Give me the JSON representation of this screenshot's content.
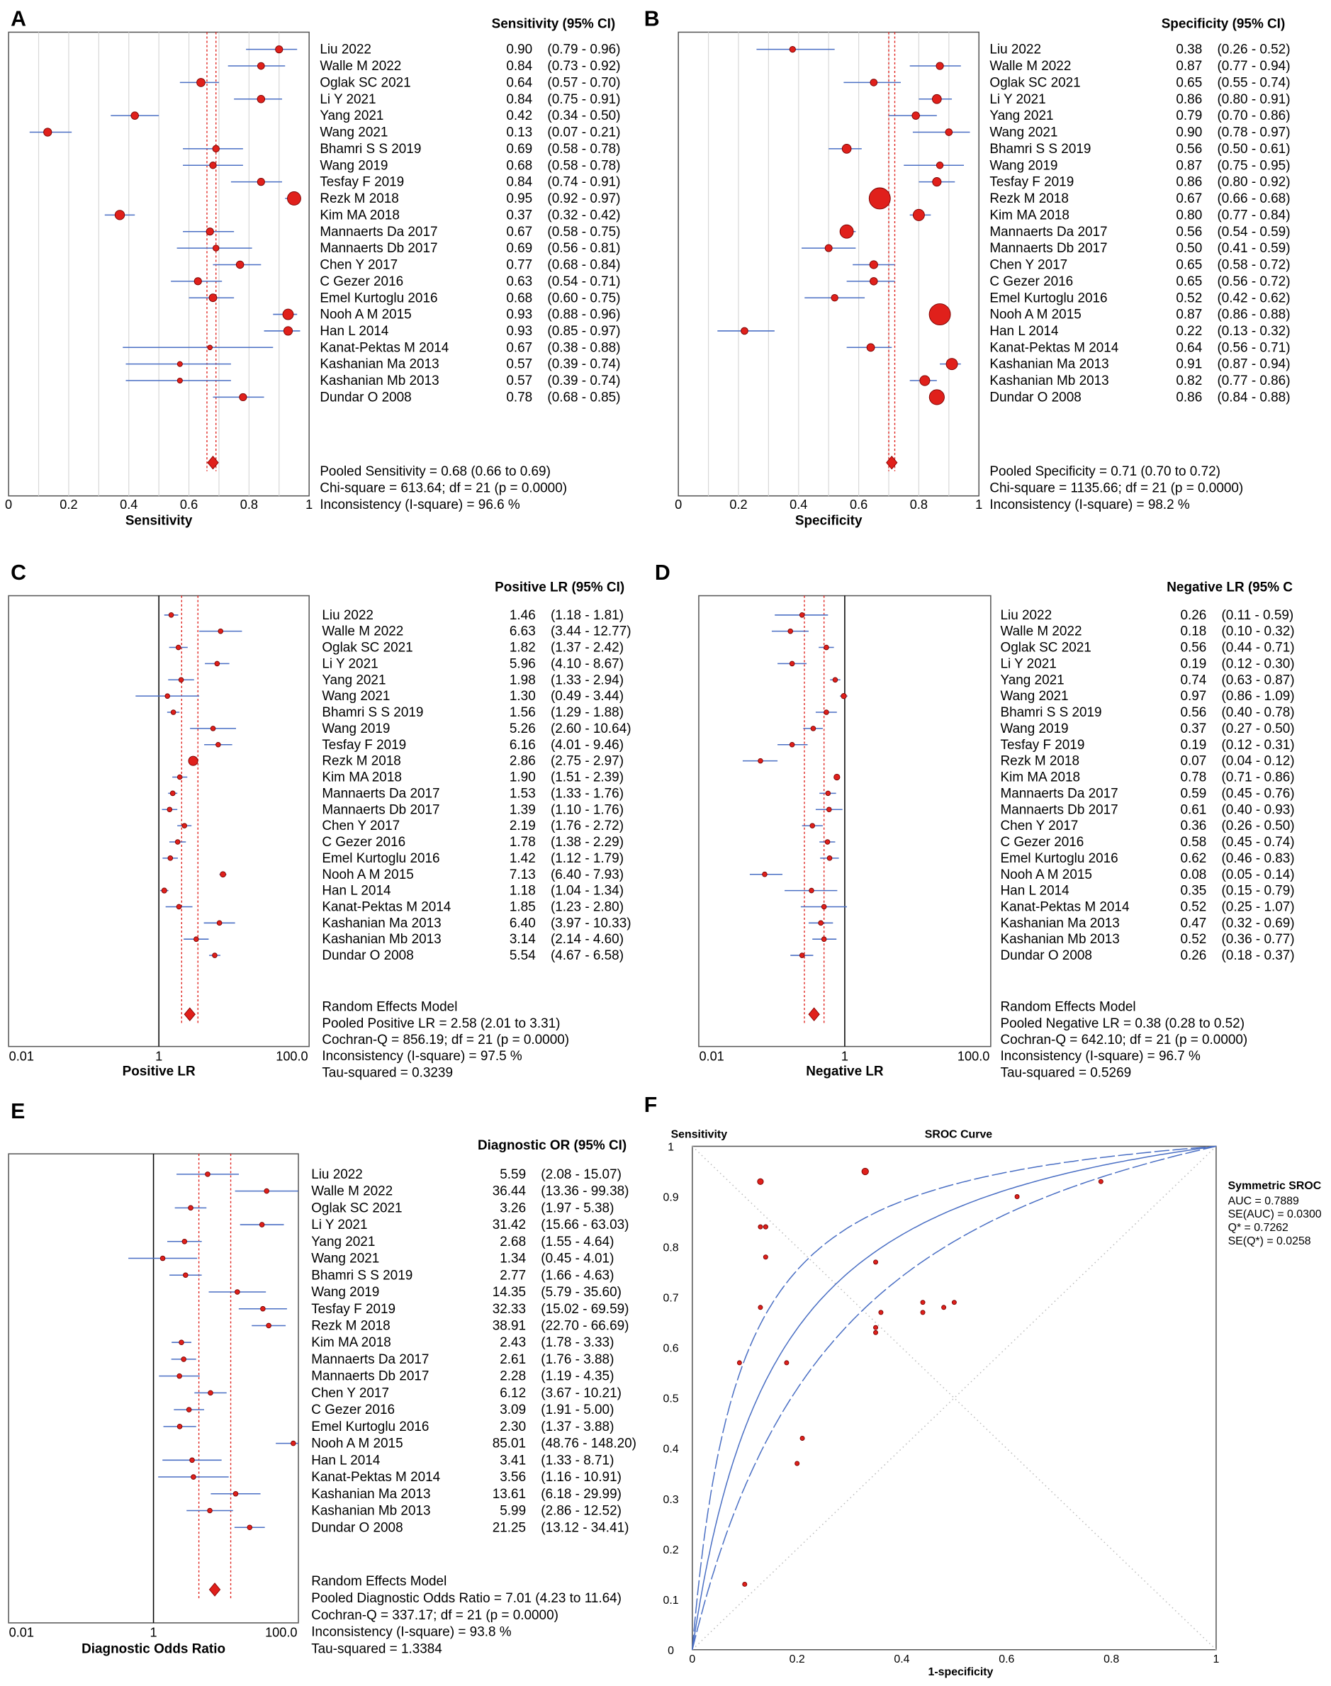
{
  "studies": [
    "Liu 2022",
    "Walle M 2022",
    "Oglak SC 2021",
    "Li Y 2021",
    "Yang 2021",
    "Wang 2021",
    "Bhamri S S 2019",
    "Wang 2019",
    "Tesfay F 2019",
    "Rezk M 2018",
    "Kim MA 2018",
    "Mannaerts Da 2017",
    "Mannaerts Db 2017",
    "Chen Y 2017",
    "C Gezer 2016",
    "Emel Kurtoglu 2016",
    "Nooh A M 2015",
    "Han L 2014",
    "Kanat-Pektas M 2014",
    "Kashanian Ma 2013",
    "Kashanian Mb 2013",
    "Dundar O 2008"
  ],
  "colors": {
    "marker": "#e0201b",
    "ci_line": "#4a6fc4",
    "pooled_line": "#e0201b",
    "grid": "#d8d8d8"
  },
  "chart_data": [
    {
      "id": "A",
      "type": "forest",
      "letter": "A",
      "header": "Sensitivity (95% CI)",
      "xlabel": "Sensitivity",
      "scale": "linear",
      "xlim": [
        0,
        1
      ],
      "tick_labels": [
        "0",
        "0.2",
        "0.4",
        "0.6",
        "0.8",
        "1"
      ],
      "ticks": [
        0,
        0.2,
        0.4,
        0.6,
        0.8,
        1
      ],
      "rows": [
        [
          0.9,
          0.79,
          0.96
        ],
        [
          0.84,
          0.73,
          0.92
        ],
        [
          0.64,
          0.57,
          0.7
        ],
        [
          0.84,
          0.75,
          0.91
        ],
        [
          0.42,
          0.34,
          0.5
        ],
        [
          0.13,
          0.07,
          0.21
        ],
        [
          0.69,
          0.58,
          0.78
        ],
        [
          0.68,
          0.58,
          0.78
        ],
        [
          0.84,
          0.74,
          0.91
        ],
        [
          0.95,
          0.92,
          0.97
        ],
        [
          0.37,
          0.32,
          0.42
        ],
        [
          0.67,
          0.58,
          0.75
        ],
        [
          0.69,
          0.56,
          0.81
        ],
        [
          0.77,
          0.68,
          0.84
        ],
        [
          0.63,
          0.54,
          0.71
        ],
        [
          0.68,
          0.6,
          0.75
        ],
        [
          0.93,
          0.88,
          0.96
        ],
        [
          0.93,
          0.85,
          0.97
        ],
        [
          0.67,
          0.38,
          0.88
        ],
        [
          0.57,
          0.39,
          0.74
        ],
        [
          0.57,
          0.39,
          0.74
        ],
        [
          0.78,
          0.68,
          0.85
        ]
      ],
      "pooled": [
        0.68,
        0.66,
        0.69
      ],
      "footer": [
        "Pooled Sensitivity = 0.68 (0.66 to 0.69)",
        "Chi-square = 613.64; df = 21 (p = 0.0000)",
        "Inconsistency (I-square) = 96.6 %"
      ]
    },
    {
      "id": "B",
      "type": "forest",
      "letter": "B",
      "header": "Specificity (95% CI)",
      "xlabel": "Specificity",
      "scale": "linear",
      "xlim": [
        0,
        1
      ],
      "tick_labels": [
        "0",
        "0.2",
        "0.4",
        "0.6",
        "0.8",
        "1"
      ],
      "ticks": [
        0,
        0.2,
        0.4,
        0.6,
        0.8,
        1
      ],
      "rows": [
        [
          0.38,
          0.26,
          0.52
        ],
        [
          0.87,
          0.77,
          0.94
        ],
        [
          0.65,
          0.55,
          0.74
        ],
        [
          0.86,
          0.8,
          0.91
        ],
        [
          0.79,
          0.7,
          0.86
        ],
        [
          0.9,
          0.78,
          0.97
        ],
        [
          0.56,
          0.5,
          0.61
        ],
        [
          0.87,
          0.75,
          0.95
        ],
        [
          0.86,
          0.8,
          0.92
        ],
        [
          0.67,
          0.66,
          0.68
        ],
        [
          0.8,
          0.77,
          0.84
        ],
        [
          0.56,
          0.54,
          0.59
        ],
        [
          0.5,
          0.41,
          0.59
        ],
        [
          0.65,
          0.58,
          0.72
        ],
        [
          0.65,
          0.56,
          0.72
        ],
        [
          0.52,
          0.42,
          0.62
        ],
        [
          0.87,
          0.86,
          0.88
        ],
        [
          0.22,
          0.13,
          0.32
        ],
        [
          0.64,
          0.56,
          0.71
        ],
        [
          0.91,
          0.87,
          0.94
        ],
        [
          0.82,
          0.77,
          0.86
        ],
        [
          0.86,
          0.84,
          0.88
        ]
      ],
      "pooled": [
        0.71,
        0.7,
        0.72
      ],
      "footer": [
        "Pooled Specificity = 0.71 (0.70 to 0.72)",
        "Chi-square = 1135.66; df = 21 (p = 0.0000)",
        "Inconsistency (I-square) = 98.2 %"
      ]
    },
    {
      "id": "C",
      "type": "forest",
      "letter": "C",
      "header": "Positive LR (95% CI)",
      "xlabel": "Positive LR",
      "scale": "log",
      "xlim": [
        0.01,
        100
      ],
      "tick_labels": [
        "0.01",
        "1",
        "100.0"
      ],
      "ticks": [
        0.01,
        1,
        100
      ],
      "rows": [
        [
          1.46,
          1.18,
          1.81
        ],
        [
          6.63,
          3.44,
          12.77
        ],
        [
          1.82,
          1.37,
          2.42
        ],
        [
          5.96,
          4.1,
          8.67
        ],
        [
          1.98,
          1.33,
          2.94
        ],
        [
          1.3,
          0.49,
          3.44
        ],
        [
          1.56,
          1.29,
          1.88
        ],
        [
          5.26,
          2.6,
          10.64
        ],
        [
          6.16,
          4.01,
          9.46
        ],
        [
          2.86,
          2.75,
          2.97
        ],
        [
          1.9,
          1.51,
          2.39
        ],
        [
          1.53,
          1.33,
          1.76
        ],
        [
          1.39,
          1.1,
          1.76
        ],
        [
          2.19,
          1.76,
          2.72
        ],
        [
          1.78,
          1.38,
          2.29
        ],
        [
          1.42,
          1.12,
          1.79
        ],
        [
          7.13,
          6.4,
          7.93
        ],
        [
          1.18,
          1.04,
          1.34
        ],
        [
          1.85,
          1.23,
          2.8
        ],
        [
          6.4,
          3.97,
          10.33
        ],
        [
          3.14,
          2.14,
          4.6
        ],
        [
          5.54,
          4.67,
          6.58
        ]
      ],
      "pooled": [
        2.58,
        2.01,
        3.31
      ],
      "footer": [
        "Random Effects Model",
        "Pooled Positive LR = 2.58 (2.01 to 3.31)",
        "Cochran-Q = 856.19; df = 21 (p = 0.0000)",
        "Inconsistency (I-square) = 97.5 %",
        "Tau-squared = 0.3239"
      ]
    },
    {
      "id": "D",
      "type": "forest",
      "letter": "D",
      "header": "Negative LR (95% C",
      "xlabel": "Negative LR",
      "scale": "log",
      "xlim": [
        0.01,
        100
      ],
      "tick_labels": [
        "0.01",
        "1",
        "100.0"
      ],
      "ticks": [
        0.01,
        1,
        100
      ],
      "rows": [
        [
          0.26,
          0.11,
          0.59
        ],
        [
          0.18,
          0.1,
          0.32
        ],
        [
          0.56,
          0.44,
          0.71
        ],
        [
          0.19,
          0.12,
          0.3
        ],
        [
          0.74,
          0.63,
          0.87
        ],
        [
          0.97,
          0.86,
          1.09
        ],
        [
          0.56,
          0.4,
          0.78
        ],
        [
          0.37,
          0.27,
          0.5
        ],
        [
          0.19,
          0.12,
          0.31
        ],
        [
          0.07,
          0.04,
          0.12
        ],
        [
          0.78,
          0.71,
          0.86
        ],
        [
          0.59,
          0.45,
          0.76
        ],
        [
          0.61,
          0.4,
          0.93
        ],
        [
          0.36,
          0.26,
          0.5
        ],
        [
          0.58,
          0.45,
          0.74
        ],
        [
          0.62,
          0.46,
          0.83
        ],
        [
          0.08,
          0.05,
          0.14
        ],
        [
          0.35,
          0.15,
          0.79
        ],
        [
          0.52,
          0.25,
          1.07
        ],
        [
          0.47,
          0.32,
          0.69
        ],
        [
          0.52,
          0.36,
          0.77
        ],
        [
          0.26,
          0.18,
          0.37
        ]
      ],
      "pooled": [
        0.38,
        0.28,
        0.52
      ],
      "footer": [
        "Random Effects Model",
        "Pooled Negative LR = 0.38 (0.28 to 0.52)",
        "Cochran-Q = 642.10; df = 21 (p = 0.0000)",
        "Inconsistency (I-square) = 96.7 %",
        "Tau-squared = 0.5269"
      ]
    },
    {
      "id": "E",
      "type": "forest",
      "letter": "E",
      "header": "Diagnostic OR (95% CI)",
      "xlabel": "Diagnostic Odds Ratio",
      "scale": "log",
      "xlim": [
        0.01,
        100
      ],
      "tick_labels": [
        "0.01",
        "1",
        "100.0"
      ],
      "ticks": [
        0.01,
        1,
        100
      ],
      "rows": [
        [
          5.59,
          2.08,
          15.07
        ],
        [
          36.44,
          13.36,
          99.38
        ],
        [
          3.26,
          1.97,
          5.38
        ],
        [
          31.42,
          15.66,
          63.03
        ],
        [
          2.68,
          1.55,
          4.64
        ],
        [
          1.34,
          0.45,
          4.01
        ],
        [
          2.77,
          1.66,
          4.63
        ],
        [
          14.35,
          5.79,
          35.6
        ],
        [
          32.33,
          15.02,
          69.59
        ],
        [
          38.91,
          22.7,
          66.69
        ],
        [
          2.43,
          1.78,
          3.33
        ],
        [
          2.61,
          1.76,
          3.88
        ],
        [
          2.28,
          1.19,
          4.35
        ],
        [
          6.12,
          3.67,
          10.21
        ],
        [
          3.09,
          1.91,
          5.0
        ],
        [
          2.3,
          1.37,
          3.88
        ],
        [
          85.01,
          48.76,
          148.2
        ],
        [
          3.41,
          1.33,
          8.71
        ],
        [
          3.56,
          1.16,
          10.91
        ],
        [
          13.61,
          6.18,
          29.99
        ],
        [
          5.99,
          2.86,
          12.52
        ],
        [
          21.25,
          13.12,
          34.41
        ]
      ],
      "pooled": [
        7.01,
        4.23,
        11.64
      ],
      "footer": [
        "Random Effects Model",
        "Pooled Diagnostic Odds Ratio = 7.01 (4.23 to 11.64)",
        "Cochran-Q = 337.17; df = 21 (p = 0.0000)",
        "Inconsistency (I-square) = 93.8 %",
        "Tau-squared = 1.3384"
      ]
    },
    {
      "id": "F",
      "type": "scatter",
      "letter": "F",
      "title": "SROC Curve",
      "ylabel": "Sensitivity",
      "xlabel": "1-specificity",
      "xlim": [
        0,
        1
      ],
      "ylim": [
        0,
        1
      ],
      "x_tick_labels": [
        "0",
        "0.2",
        "0.4",
        "0.6",
        "0.8",
        "1"
      ],
      "y_tick_labels": [
        "0",
        "0.1",
        "0.2",
        "0.3",
        "0.4",
        "0.5",
        "0.6",
        "0.7",
        "0.8",
        "0.9",
        "1"
      ],
      "points_source": "sensitivity vs 1-specificity of each study (panels A and B)",
      "legend_title": "Symmetric SROC",
      "stats": [
        "AUC = 0.7889",
        "SE(AUC) = 0.0300",
        "Q* = 0.7262",
        "SE(Q*) = 0.0258"
      ],
      "q_star": 0.7262,
      "se_q_star": 0.0258
    }
  ]
}
